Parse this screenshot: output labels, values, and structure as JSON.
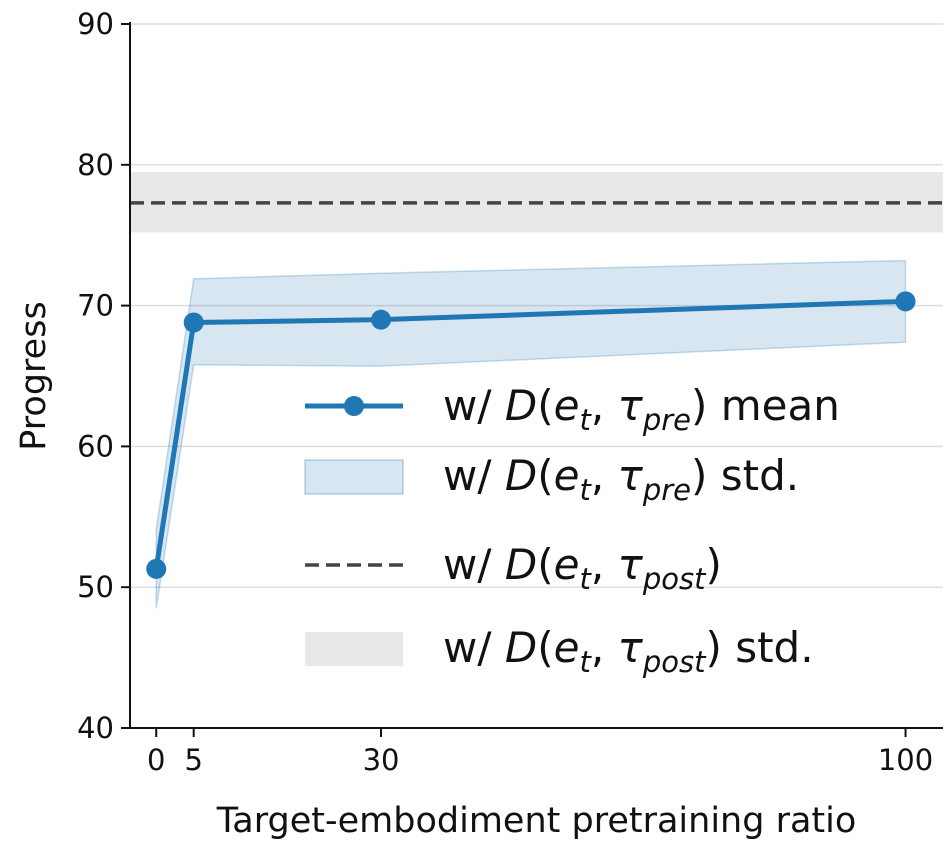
{
  "chart_data": {
    "type": "line",
    "xlabel": "Target-embodiment pretraining ratio",
    "ylabel": "Progress",
    "xlim": [
      -3.5,
      105
    ],
    "ylim": [
      40,
      90
    ],
    "xticks": [
      0,
      5,
      30,
      100
    ],
    "yticks": [
      40,
      50,
      60,
      70,
      80,
      90
    ],
    "grid": "horizontal",
    "legend_position": "center-right",
    "series": [
      {
        "name": "w/ D(e_t, τ_pre) mean",
        "legend_label": {
          "pre": "w/ ",
          "italic": "D",
          "open": "(",
          "var": "e",
          "sub": "t",
          "comma": ", ",
          "var2": "τ",
          "sub2": "pre",
          "close": ")",
          "suffix": " mean"
        },
        "x": [
          0,
          5,
          30,
          100
        ],
        "y": [
          51.3,
          68.8,
          69.0,
          70.3
        ],
        "color": "#1f77b4"
      },
      {
        "name": "w/ D(e_t, τ_pre) std.",
        "legend_label": {
          "pre": "w/ ",
          "italic": "D",
          "open": "(",
          "var": "e",
          "sub": "t",
          "comma": ", ",
          "var2": "τ",
          "sub2": "pre",
          "close": ")",
          "suffix": " std."
        },
        "x": [
          0,
          5,
          30,
          100
        ],
        "lower": [
          48.5,
          65.8,
          65.7,
          67.4
        ],
        "upper": [
          54.1,
          71.9,
          72.3,
          73.2
        ],
        "color": "#1f77b4"
      },
      {
        "name": "w/ D(e_t, τ_post)",
        "legend_label": {
          "pre": "w/ ",
          "italic": "D",
          "open": "(",
          "var": "e",
          "sub": "t",
          "comma": ", ",
          "var2": "τ",
          "sub2": "post",
          "close": ")",
          "suffix": ""
        },
        "y": 77.3,
        "color": "#444444"
      },
      {
        "name": "w/ D(e_t, τ_post) std.",
        "legend_label": {
          "pre": "w/ ",
          "italic": "D",
          "open": "(",
          "var": "e",
          "sub": "t",
          "comma": ", ",
          "var2": "τ",
          "sub2": "post",
          "close": ")",
          "suffix": " std."
        },
        "lower": 75.2,
        "upper": 79.5,
        "color": "#e8e8e8"
      }
    ]
  }
}
